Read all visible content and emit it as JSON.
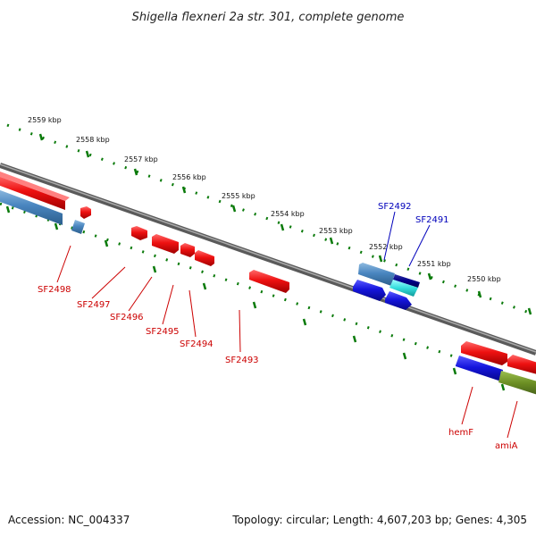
{
  "title": "Shigella flexneri 2a str. 301, complete genome",
  "footer": {
    "accession": "Accession: NC_004337",
    "summary": "Topology: circular; Length: 4,607,203 bp; Genes: 4,305"
  },
  "colors": {
    "label_red": "#cc0000",
    "label_blue": "#0000bb",
    "tick_green": "#0a7a0a",
    "backbone_gray": "#777777",
    "gene_red": "#ee1111",
    "gene_blue": "#1515dd",
    "gene_steelblue": "#4a86c0",
    "gene_navy": "#00008a",
    "gene_cyan": "#33dddd",
    "gene_olive": "#6b8e23"
  },
  "scale_labels": [
    "2559 kbp",
    "2558 kbp",
    "2557 kbp",
    "2556 kbp",
    "2555 kbp",
    "2554 kbp",
    "2553 kbp",
    "2552 kbp",
    "2551 kbp",
    "2550 kbp"
  ],
  "gene_labels": [
    {
      "text": "SF2498",
      "strand": "reverse"
    },
    {
      "text": "SF2497",
      "strand": "reverse"
    },
    {
      "text": "SF2496",
      "strand": "reverse"
    },
    {
      "text": "SF2495",
      "strand": "reverse"
    },
    {
      "text": "SF2494",
      "strand": "reverse"
    },
    {
      "text": "SF2493",
      "strand": "reverse"
    },
    {
      "text": "SF2492",
      "strand": "forward"
    },
    {
      "text": "SF2491",
      "strand": "forward"
    },
    {
      "text": "hemF",
      "strand": "reverse"
    },
    {
      "text": "amiA",
      "strand": "reverse"
    }
  ]
}
